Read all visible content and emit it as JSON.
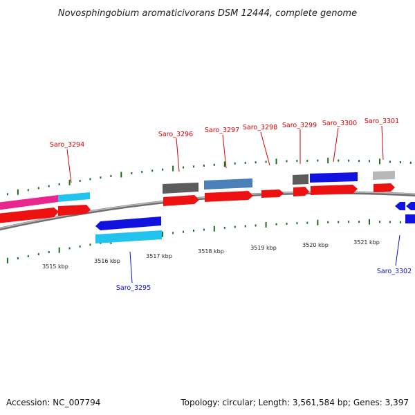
{
  "title": "Novosphingobium aromaticivorans DSM 12444, complete genome",
  "footer": {
    "accession": "Accession: NC_007794",
    "summary": "Topology: circular; Length: 3,561,584 bp; Genes: 3,397"
  },
  "colors": {
    "forward_label": "#d40000",
    "reverse_label": "#1010c8",
    "cds": "#ee1111",
    "tick": "#1a6e1a",
    "backbone": "#8a8a8a"
  },
  "ruler_labels": [
    "3515 kbp",
    "3516 kbp",
    "3517 kbp",
    "3518 kbp",
    "3519 kbp",
    "3520 kbp",
    "3521 kbp"
  ],
  "gene_labels": {
    "forward": [
      "Saro_3294",
      "Saro_3296",
      "Saro_3297",
      "Saro_3298",
      "Saro_3299",
      "Saro_3300",
      "Saro_3301"
    ],
    "reverse": [
      "Saro_3295",
      "Saro_3302"
    ]
  },
  "features": [
    {
      "strand": "+",
      "track": "outer",
      "color": "#e8268e",
      "label": "Saro_3294"
    },
    {
      "strand": "+",
      "track": "outer",
      "color": "#22c3ec",
      "label": "Saro_3294"
    },
    {
      "strand": "+",
      "track": "inner",
      "color": "#ee1111",
      "label": "Saro_3294"
    },
    {
      "strand": "-",
      "track": "inner",
      "color": "#1212e0",
      "label": "Saro_3295"
    },
    {
      "strand": "-",
      "track": "outer",
      "color": "#22c3ec",
      "label": "Saro_3295"
    },
    {
      "strand": "+",
      "track": "outer",
      "color": "#5c5c5c",
      "label": "Saro_3296"
    },
    {
      "strand": "+",
      "track": "outer",
      "color": "#4b80b8",
      "label": "Saro_3297"
    },
    {
      "strand": "+",
      "track": "inner",
      "color": "#ee1111",
      "label": "Saro_3298"
    },
    {
      "strand": "+",
      "track": "outer",
      "color": "#5c5c5c",
      "label": "Saro_3299"
    },
    {
      "strand": "+",
      "track": "outer",
      "color": "#1212e0",
      "label": "Saro_3300"
    },
    {
      "strand": "+",
      "track": "outer",
      "color": "#b8b8b8",
      "label": "Saro_3301"
    },
    {
      "strand": "-",
      "track": "inner",
      "color": "#1212e0",
      "label": "Saro_3302"
    }
  ]
}
